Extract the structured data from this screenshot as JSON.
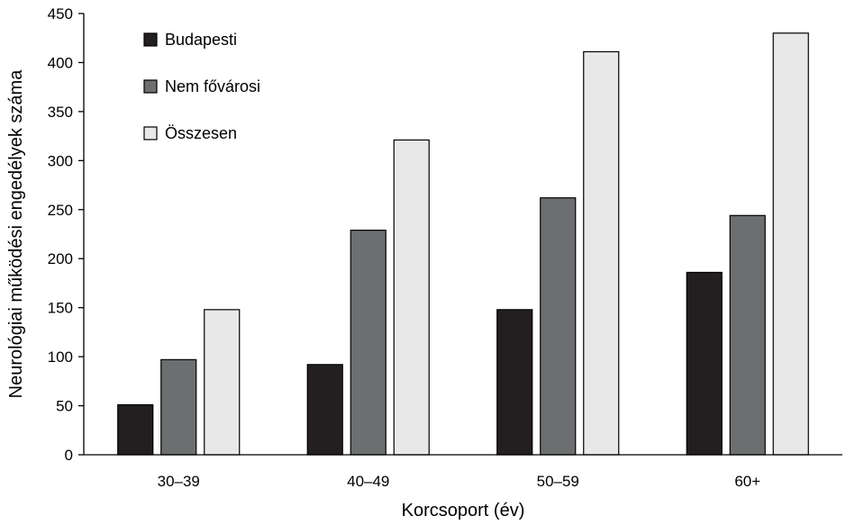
{
  "chart_data": {
    "type": "bar",
    "title": "",
    "xlabel": "Korcsoport (év)",
    "ylabel": "Neurológiai működési engedélyek száma",
    "categories": [
      "30–39",
      "40–49",
      "50–59",
      "60+"
    ],
    "series": [
      {
        "name": "Budapesti",
        "values": [
          51,
          92,
          148,
          186
        ],
        "color": "#231f20"
      },
      {
        "name": "Nem fővárosi",
        "values": [
          97,
          229,
          262,
          244
        ],
        "color": "#6d6e70"
      },
      {
        "name": "Összesen",
        "values": [
          148,
          321,
          411,
          430
        ],
        "color": "#e8e8e8"
      }
    ],
    "ylim": [
      0,
      450
    ],
    "yticks": [
      "0",
      "50",
      "100",
      "150",
      "200",
      "250",
      "300",
      "350",
      "400",
      "450"
    ],
    "grid": false,
    "legend_position": "top-left"
  }
}
